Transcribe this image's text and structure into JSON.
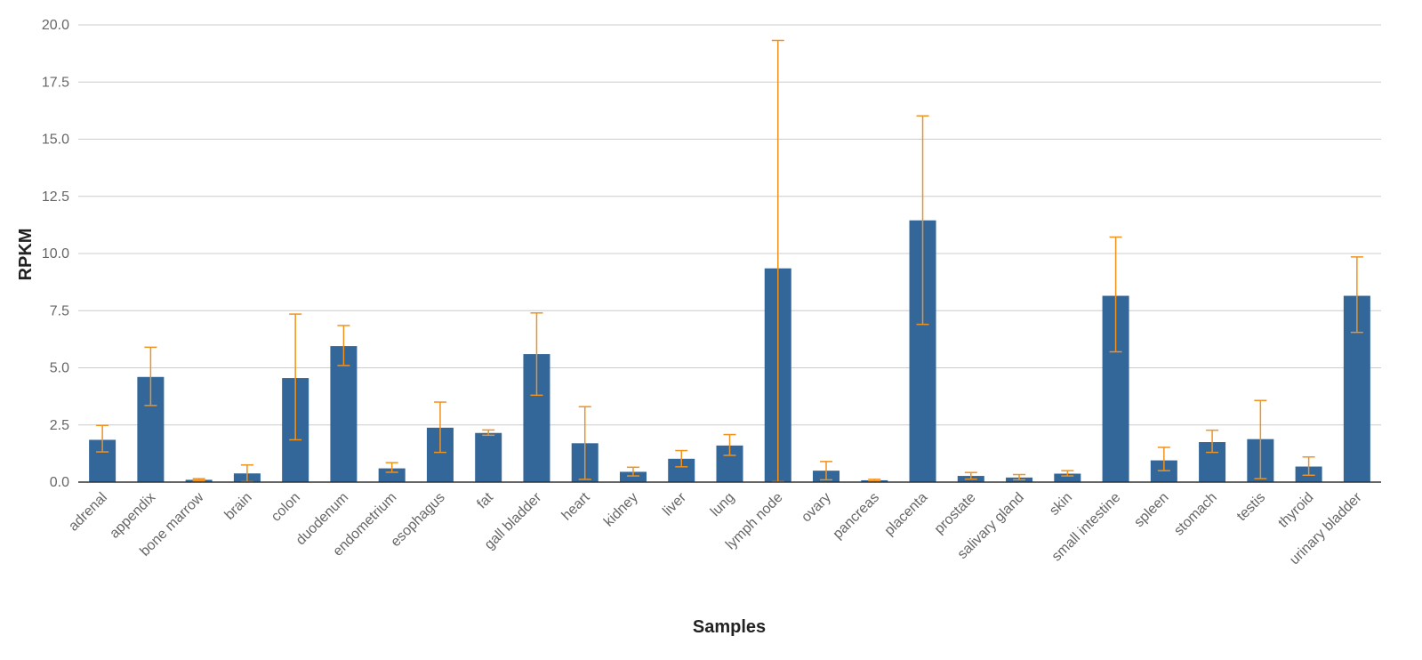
{
  "chart_data": {
    "type": "bar",
    "title": "",
    "xlabel": "Samples",
    "ylabel": "RPKM",
    "ylim": [
      0,
      20
    ],
    "yticks": [
      "0.0",
      "2.5",
      "5.0",
      "7.5",
      "10.0",
      "12.5",
      "15.0",
      "17.5",
      "20.0"
    ],
    "grid": true,
    "categories": [
      "adrenal",
      "appendix",
      "bone marrow",
      "brain",
      "colon",
      "duodenum",
      "endometrium",
      "esophagus",
      "fat",
      "gall bladder",
      "heart",
      "kidney",
      "liver",
      "lung",
      "lymph node",
      "ovary",
      "pancreas",
      "placenta",
      "prostate",
      "salivary gland",
      "skin",
      "small intestine",
      "spleen",
      "stomach",
      "testis",
      "thyroid",
      "urinary bladder"
    ],
    "values": [
      1.85,
      4.6,
      0.1,
      0.38,
      4.55,
      5.95,
      0.6,
      2.38,
      2.15,
      5.6,
      1.7,
      0.45,
      1.02,
      1.6,
      9.35,
      0.5,
      0.08,
      11.45,
      0.27,
      0.2,
      0.37,
      8.15,
      0.95,
      1.75,
      1.88,
      0.68,
      8.15
    ],
    "error_low": [
      1.32,
      3.35,
      0.05,
      0.02,
      1.85,
      5.1,
      0.43,
      1.3,
      2.05,
      3.8,
      0.12,
      0.27,
      0.67,
      1.17,
      0.02,
      0.1,
      0.05,
      6.9,
      0.13,
      0.1,
      0.27,
      5.7,
      0.5,
      1.3,
      0.15,
      0.3,
      6.55
    ],
    "error_high": [
      2.48,
      5.9,
      0.15,
      0.75,
      7.35,
      6.85,
      0.85,
      3.5,
      2.28,
      7.4,
      3.3,
      0.65,
      1.38,
      2.08,
      19.32,
      0.9,
      0.12,
      16.02,
      0.42,
      0.33,
      0.5,
      10.72,
      1.52,
      2.27,
      3.57,
      1.1,
      9.85
    ],
    "colors": {
      "bar": "#336699",
      "error_bar": "#f0921e",
      "grid": "#cccccc",
      "axis": "#333333"
    }
  }
}
